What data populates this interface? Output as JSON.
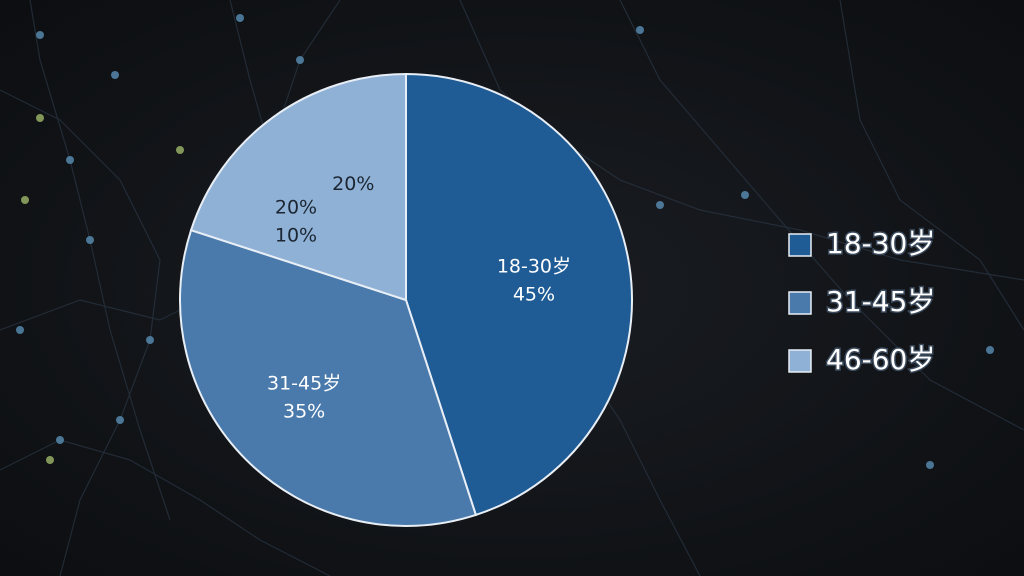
{
  "chart_data": {
    "type": "pie",
    "categories": [
      "18-30岁",
      "31-45岁",
      "46-60岁"
    ],
    "values": [
      45,
      35,
      20
    ],
    "value_labels": [
      "45%",
      "35%",
      "20%"
    ],
    "colors": [
      "#1f5b94",
      "#4a7aab",
      "#8fb1d6"
    ],
    "annotations": [
      "20%",
      "10%"
    ],
    "legend": "right"
  }
}
